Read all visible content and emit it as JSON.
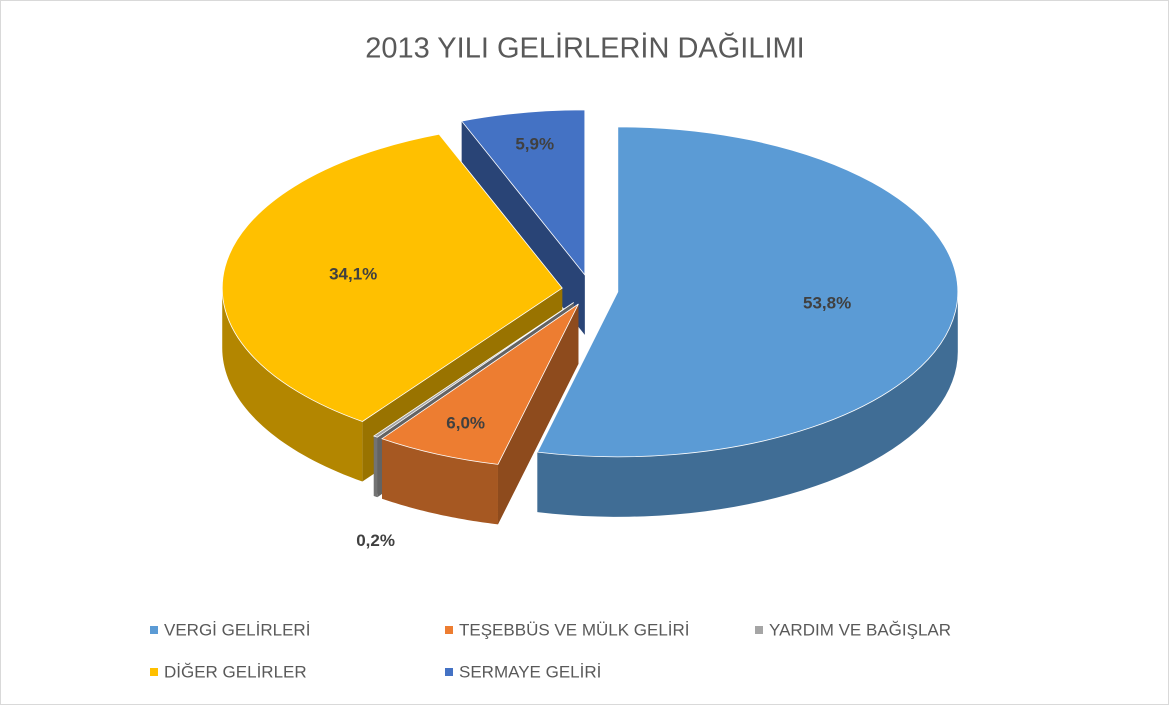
{
  "chart_data": {
    "type": "pie3d",
    "title": "2013 YILI GELİRLERİN DAĞILIMI",
    "categories": [
      "VERGİ  GELİRLERİ",
      "TEŞEBBÜS VE MÜLK GELİRİ",
      "YARDIM VE BAĞIŞLAR",
      "DİĞER GELİRLER",
      "SERMAYE GELİRİ"
    ],
    "values": [
      53.8,
      6.0,
      0.2,
      34.1,
      5.9
    ],
    "value_labels": [
      "53,8%",
      "6,0%",
      "0,2%",
      "34,1%",
      "5,9%"
    ],
    "colors": [
      "#5b9bd5",
      "#ed7d31",
      "#a5a5a5",
      "#ffc000",
      "#4472c4"
    ],
    "legend": "bottom"
  }
}
